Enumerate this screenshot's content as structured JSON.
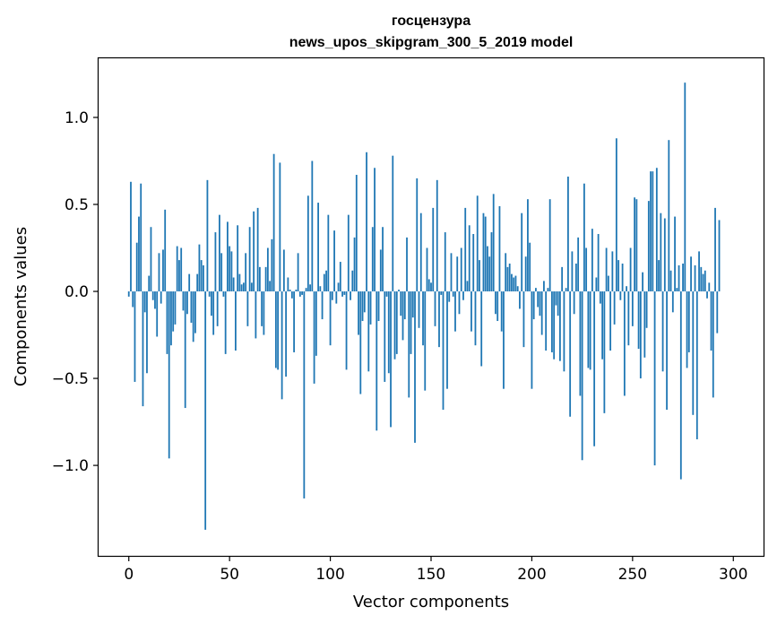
{
  "chart_data": {
    "type": "bar",
    "title_line1": "госцензура",
    "title_line2": "news_upos_skipgram_300_5_2019 model",
    "xlabel": "Vector components",
    "ylabel": "Components values",
    "xlim": [
      -15,
      315
    ],
    "ylim": [
      -1.52,
      1.34
    ],
    "xticks": [
      0,
      50,
      100,
      150,
      200,
      250,
      300
    ],
    "xtick_labels": [
      "0",
      "50",
      "100",
      "150",
      "200",
      "250",
      "300"
    ],
    "yticks": [
      -1.0,
      -0.5,
      0.0,
      0.5,
      1.0
    ],
    "ytick_labels": [
      "−1.0",
      "−0.5",
      "0.0",
      "0.5",
      "1.0"
    ],
    "bar_color": "#1f77b4",
    "values": [
      -0.03,
      0.63,
      -0.09,
      -0.52,
      0.28,
      0.43,
      0.62,
      -0.66,
      -0.12,
      -0.47,
      0.09,
      0.37,
      -0.05,
      -0.1,
      -0.26,
      0.22,
      -0.07,
      0.24,
      0.47,
      -0.36,
      -0.96,
      -0.31,
      -0.23,
      -0.19,
      0.26,
      0.18,
      0.25,
      -0.11,
      -0.67,
      -0.13,
      0.1,
      -0.18,
      -0.29,
      -0.24,
      0.1,
      0.27,
      0.18,
      0.15,
      -1.37,
      0.64,
      -0.03,
      -0.14,
      -0.25,
      0.34,
      -0.2,
      0.44,
      0.22,
      -0.03,
      -0.36,
      0.4,
      0.26,
      0.23,
      0.08,
      -0.34,
      0.38,
      0.1,
      0.04,
      0.05,
      0.22,
      -0.2,
      0.37,
      0.05,
      0.46,
      -0.27,
      0.48,
      0.14,
      -0.2,
      -0.25,
      0.14,
      0.25,
      0.06,
      0.3,
      0.79,
      -0.44,
      -0.45,
      0.74,
      -0.62,
      0.24,
      -0.49,
      0.08,
      0.01,
      -0.04,
      -0.35,
      0.01,
      0.22,
      -0.03,
      -0.02,
      -1.19,
      0.02,
      0.55,
      0.04,
      0.75,
      -0.53,
      -0.37,
      0.51,
      0.03,
      -0.16,
      0.1,
      0.12,
      0.44,
      -0.31,
      -0.05,
      0.35,
      -0.07,
      0.05,
      0.17,
      -0.03,
      -0.02,
      -0.45,
      0.44,
      -0.05,
      0.12,
      0.31,
      0.67,
      -0.25,
      -0.59,
      -0.17,
      -0.12,
      0.8,
      -0.46,
      -0.19,
      0.37,
      0.71,
      -0.8,
      -0.17,
      0.24,
      0.37,
      -0.52,
      -0.03,
      -0.47,
      -0.78,
      0.78,
      -0.39,
      -0.36,
      0.01,
      -0.14,
      -0.28,
      -0.16,
      0.31,
      -0.61,
      -0.36,
      -0.15,
      -0.87,
      0.65,
      -0.21,
      0.45,
      -0.31,
      -0.57,
      0.25,
      0.07,
      0.05,
      0.48,
      -0.2,
      0.64,
      -0.32,
      -0.02,
      -0.68,
      0.34,
      -0.56,
      -0.06,
      0.22,
      -0.03,
      -0.23,
      0.2,
      -0.13,
      0.25,
      -0.05,
      0.48,
      0.06,
      0.38,
      -0.23,
      0.33,
      -0.31,
      0.55,
      0.18,
      -0.43,
      0.45,
      0.43,
      0.26,
      0.2,
      0.34,
      0.56,
      -0.13,
      -0.17,
      0.49,
      -0.23,
      -0.56,
      0.22,
      0.14,
      0.16,
      0.1,
      0.08,
      0.09,
      0.03,
      -0.1,
      0.45,
      -0.32,
      0.2,
      0.53,
      0.28,
      -0.56,
      -0.16,
      0.02,
      -0.09,
      -0.14,
      -0.25,
      0.06,
      -0.34,
      0.02,
      0.53,
      -0.35,
      -0.39,
      -0.08,
      -0.14,
      -0.4,
      0.14,
      -0.46,
      0.02,
      0.66,
      -0.72,
      0.23,
      -0.13,
      0.16,
      0.31,
      -0.6,
      -0.97,
      0.62,
      0.25,
      -0.44,
      -0.45,
      0.36,
      -0.89,
      0.08,
      0.33,
      -0.07,
      -0.39,
      -0.7,
      0.25,
      0.09,
      -0.34,
      0.23,
      -0.19,
      0.88,
      0.18,
      -0.05,
      0.16,
      -0.6,
      0.03,
      -0.31,
      0.25,
      -0.2,
      0.54,
      0.53,
      -0.33,
      -0.5,
      0.11,
      -0.38,
      -0.21,
      0.52,
      0.69,
      0.69,
      -1.0,
      0.71,
      0.18,
      0.45,
      -0.46,
      0.42,
      -0.68,
      0.87,
      0.12,
      -0.12,
      0.43,
      0.02,
      0.15,
      -1.08,
      0.16,
      1.2,
      -0.44,
      -0.35,
      0.2,
      -0.71,
      0.15,
      -0.85,
      0.23,
      0.14,
      0.1,
      0.12,
      -0.04,
      0.05,
      -0.34,
      -0.61,
      0.48,
      -0.24,
      0.41
    ]
  }
}
